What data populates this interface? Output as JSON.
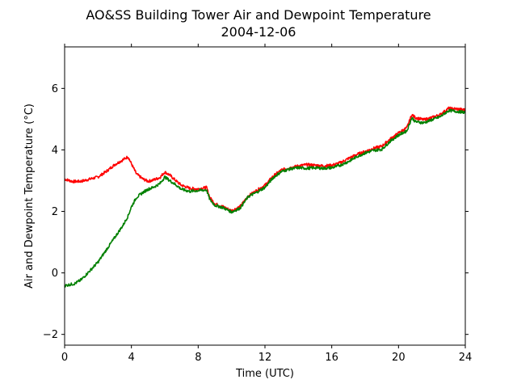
{
  "chart_data": {
    "type": "line",
    "title": "AO&SS Building Tower Air and Dewpoint Temperature",
    "subtitle": "2004-12-06",
    "xlabel": "Time (UTC)",
    "ylabel": "Air and Dewpoint Temperature (°C)",
    "xlim": [
      0,
      24
    ],
    "ylim": [
      -2.35,
      7.35
    ],
    "xticks": [
      0,
      4,
      8,
      12,
      16,
      20,
      24
    ],
    "yticks": [
      -2,
      0,
      2,
      4,
      6
    ],
    "grid": false,
    "legend": "none",
    "series": [
      {
        "color": "#ff0000",
        "x": [
          0,
          0.5,
          1,
          1.5,
          2,
          2.5,
          3,
          3.5,
          3.8,
          4,
          4.3,
          4.7,
          5,
          5.3,
          5.7,
          6,
          6.3,
          6.7,
          7,
          7.5,
          8,
          8.5,
          8.7,
          9,
          9.5,
          10,
          10.5,
          11,
          11.5,
          12,
          12.5,
          13,
          13.5,
          14,
          14.5,
          15,
          15.5,
          16,
          16.5,
          17,
          17.5,
          18,
          18.5,
          19,
          19.5,
          20,
          20.5,
          20.8,
          21,
          21.5,
          22,
          22.5,
          23,
          23.5,
          24
        ],
        "y": [
          3.05,
          2.97,
          2.98,
          3.05,
          3.12,
          3.3,
          3.52,
          3.68,
          3.78,
          3.55,
          3.22,
          3.05,
          2.98,
          3.02,
          3.1,
          3.28,
          3.18,
          2.98,
          2.85,
          2.75,
          2.73,
          2.78,
          2.45,
          2.25,
          2.15,
          2.02,
          2.15,
          2.5,
          2.68,
          2.85,
          3.15,
          3.35,
          3.42,
          3.48,
          3.52,
          3.5,
          3.48,
          3.5,
          3.58,
          3.72,
          3.85,
          3.95,
          4.05,
          4.12,
          4.35,
          4.55,
          4.72,
          5.15,
          5.05,
          4.98,
          5.05,
          5.15,
          5.35,
          5.33,
          5.3
        ]
      },
      {
        "color": "#008000",
        "x": [
          0,
          0.3,
          0.6,
          1,
          1.3,
          1.6,
          2,
          2.5,
          3,
          3.5,
          3.8,
          4,
          4.3,
          4.7,
          5,
          5.3,
          5.7,
          6,
          6.3,
          6.7,
          7,
          7.5,
          8,
          8.5,
          8.7,
          9,
          9.5,
          10,
          10.5,
          11,
          11.5,
          12,
          12.5,
          13,
          13.5,
          14,
          14.5,
          15,
          15.5,
          16,
          16.5,
          17,
          17.5,
          18,
          18.5,
          19,
          19.5,
          20,
          20.5,
          20.8,
          21,
          21.5,
          22,
          22.5,
          23,
          23.5,
          24
        ],
        "y": [
          -0.42,
          -0.38,
          -0.35,
          -0.22,
          -0.05,
          0.12,
          0.35,
          0.75,
          1.15,
          1.55,
          1.85,
          2.15,
          2.45,
          2.62,
          2.72,
          2.78,
          2.9,
          3.12,
          3.0,
          2.85,
          2.72,
          2.65,
          2.68,
          2.7,
          2.38,
          2.2,
          2.12,
          1.98,
          2.1,
          2.48,
          2.62,
          2.78,
          3.1,
          3.3,
          3.38,
          3.42,
          3.4,
          3.42,
          3.4,
          3.42,
          3.5,
          3.62,
          3.78,
          3.9,
          3.98,
          4.02,
          4.28,
          4.48,
          4.62,
          5.05,
          4.92,
          4.88,
          4.98,
          5.08,
          5.28,
          5.25,
          5.22
        ]
      }
    ]
  }
}
